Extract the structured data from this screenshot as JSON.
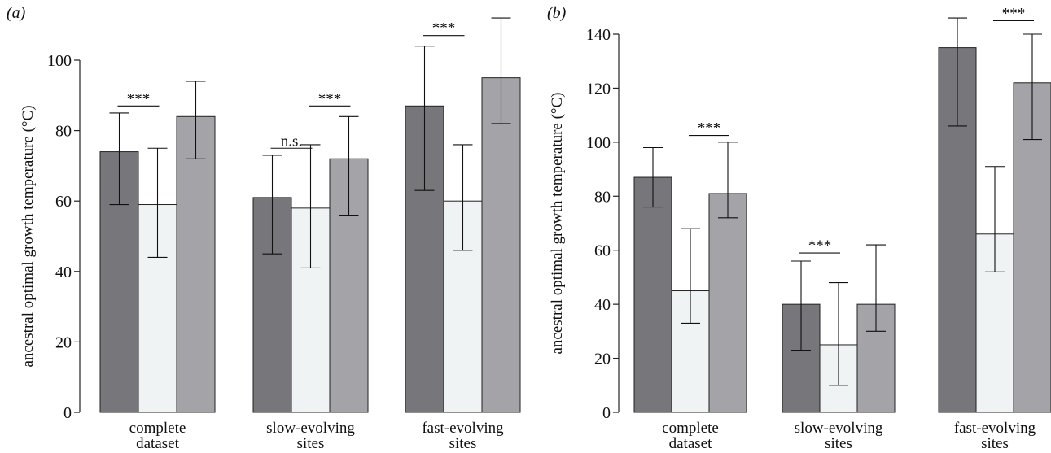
{
  "chart_data": [
    {
      "type": "bar",
      "panel_label": "(a)",
      "ylabel": "ancestral optimal growth temperature (°C)",
      "ylim": [
        0,
        100
      ],
      "yticks": [
        0,
        20,
        40,
        60,
        80,
        100
      ],
      "categories": [
        [
          "complete",
          "dataset"
        ],
        [
          "slow-evolving",
          "sites"
        ],
        [
          "fast-evolving",
          "sites"
        ]
      ],
      "series": [
        {
          "color": "#77777b",
          "values": [
            74,
            61,
            87
          ],
          "err_low": [
            59,
            45,
            63
          ],
          "err_high": [
            85,
            73,
            104
          ]
        },
        {
          "color": "#eff3f3",
          "values": [
            59,
            58,
            60
          ],
          "err_low": [
            44,
            41,
            46
          ],
          "err_high": [
            75,
            76,
            76
          ]
        },
        {
          "color": "#a4a4a8",
          "values": [
            84,
            72,
            95
          ],
          "err_low": [
            72,
            56,
            82
          ],
          "err_high": [
            94,
            84,
            112
          ]
        }
      ],
      "annotations": [
        {
          "text": "***",
          "group": 0,
          "from": 0,
          "to": 1,
          "y": 87
        },
        {
          "text": "n.s.",
          "group": 1,
          "from": 0,
          "to": 1,
          "y": 75
        },
        {
          "text": "***",
          "group": 1,
          "from": 1,
          "to": 2,
          "y": 87
        },
        {
          "text": "***",
          "group": 2,
          "from": 0,
          "to": 1,
          "y": 107
        }
      ]
    },
    {
      "type": "bar",
      "panel_label": "(b)",
      "ylabel": "ancestral optimal growth temperature (°C)",
      "ylim": [
        0,
        140
      ],
      "yticks": [
        0,
        20,
        40,
        60,
        80,
        100,
        120,
        140
      ],
      "categories": [
        [
          "complete",
          "dataset"
        ],
        [
          "slow-evolving",
          "sites"
        ],
        [
          "fast-evolving",
          "sites"
        ]
      ],
      "series": [
        {
          "color": "#77777b",
          "values": [
            87,
            40,
            135
          ],
          "err_low": [
            76,
            23,
            106
          ],
          "err_high": [
            98,
            56,
            146
          ]
        },
        {
          "color": "#eff3f3",
          "values": [
            45,
            25,
            66
          ],
          "err_low": [
            33,
            10,
            52
          ],
          "err_high": [
            68,
            48,
            91
          ]
        },
        {
          "color": "#a4a4a8",
          "values": [
            81,
            40,
            122
          ],
          "err_low": [
            72,
            30,
            101
          ],
          "err_high": [
            100,
            62,
            140
          ]
        }
      ],
      "annotations": [
        {
          "text": "***",
          "group": 0,
          "from": 1,
          "to": 2,
          "y": 102.5
        },
        {
          "text": "***",
          "group": 1,
          "from": 0,
          "to": 1,
          "y": 59
        },
        {
          "text": "***",
          "group": 2,
          "from": 1,
          "to": 2,
          "y": 145
        }
      ]
    }
  ]
}
